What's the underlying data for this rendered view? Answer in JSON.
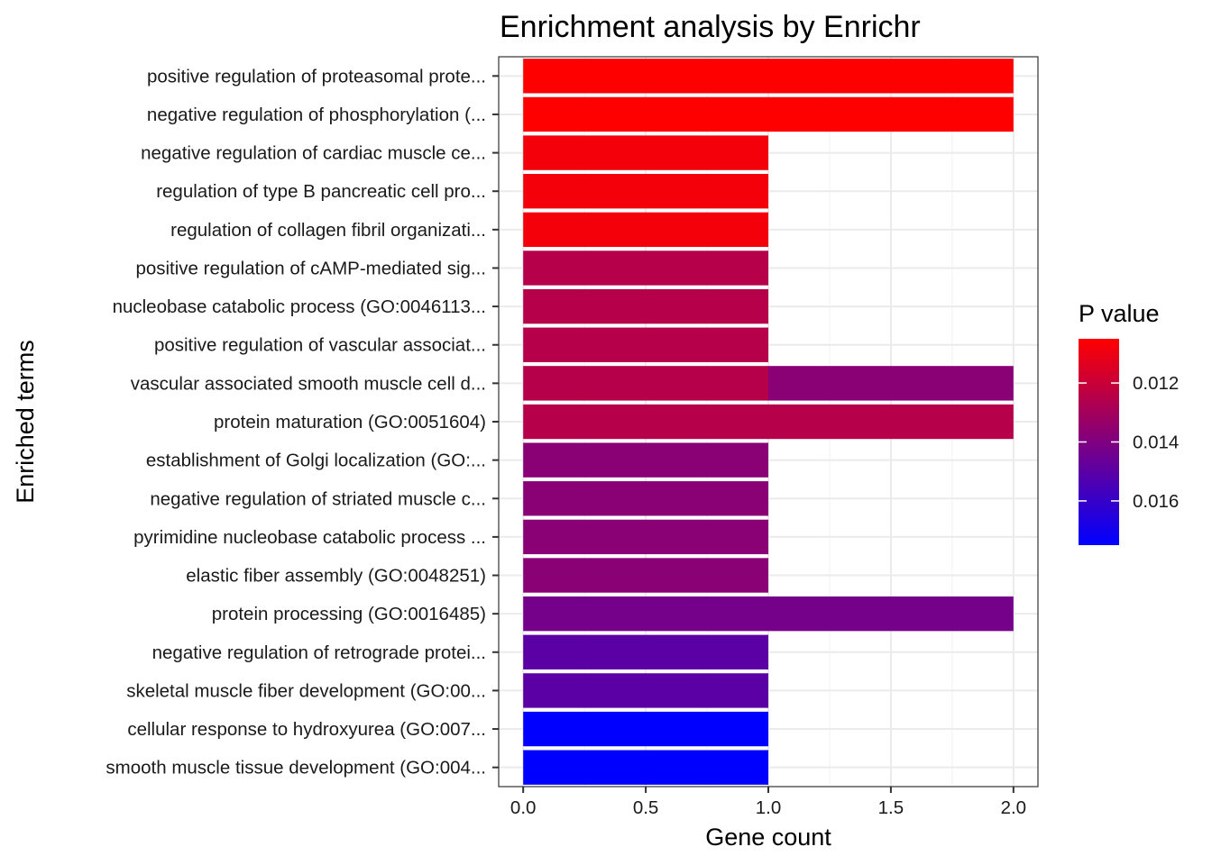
{
  "chart_data": {
    "type": "bar",
    "orientation": "horizontal",
    "title": "Enrichment analysis by Enrichr",
    "xlabel": "Gene count",
    "ylabel": "Enriched terms",
    "xlim": [
      0,
      2
    ],
    "xticks": [
      0,
      0.5,
      1,
      1.5,
      2
    ],
    "xtick_labels": [
      "0.0",
      "0.5",
      "1.0",
      "1.5",
      "2.0"
    ],
    "legend": {
      "title": "P value",
      "placement": "right",
      "range": [
        0.0105,
        0.0175
      ],
      "ticks": [
        0.012,
        0.014,
        0.016
      ],
      "tick_labels": [
        "0.012",
        "0.014",
        "0.016"
      ],
      "low_color": "#ff0000",
      "high_color": "#0000ff"
    },
    "bars": [
      {
        "term": "positive regulation of proteasomal prote...",
        "count": 2,
        "p_value": 0.0105
      },
      {
        "term": "negative regulation of phosphorylation (...",
        "count": 2,
        "p_value": 0.0105
      },
      {
        "term": "negative regulation of cardiac muscle ce...",
        "count": 1,
        "p_value": 0.0108
      },
      {
        "term": "regulation of type B pancreatic cell pro...",
        "count": 1,
        "p_value": 0.0108
      },
      {
        "term": "regulation of collagen fibril organizati...",
        "count": 1,
        "p_value": 0.0108
      },
      {
        "term": "positive regulation of cAMP-mediated sig...",
        "count": 1,
        "p_value": 0.0125
      },
      {
        "term": "nucleobase catabolic process (GO:0046113...",
        "count": 1,
        "p_value": 0.0125
      },
      {
        "term": "positive regulation of vascular associat...",
        "count": 1,
        "p_value": 0.0125
      },
      {
        "term": "vascular associated smooth muscle cell d...",
        "count": 2,
        "segments": [
          {
            "count": 1,
            "p_value": 0.0125
          },
          {
            "count": 1,
            "p_value": 0.0137
          }
        ]
      },
      {
        "term": "protein maturation (GO:0051604)",
        "count": 2,
        "p_value": 0.0125
      },
      {
        "term": "establishment of Golgi localization (GO:...",
        "count": 1,
        "p_value": 0.0137
      },
      {
        "term": "negative regulation of striated muscle c...",
        "count": 1,
        "p_value": 0.0137
      },
      {
        "term": "pyrimidine nucleobase catabolic process ...",
        "count": 1,
        "p_value": 0.0137
      },
      {
        "term": "elastic fiber assembly (GO:0048251)",
        "count": 1,
        "p_value": 0.0137
      },
      {
        "term": "protein processing (GO:0016485)",
        "count": 2,
        "p_value": 0.0143
      },
      {
        "term": "negative regulation of retrograde protei...",
        "count": 1,
        "p_value": 0.015
      },
      {
        "term": "skeletal muscle fiber development (GO:00...",
        "count": 1,
        "p_value": 0.015
      },
      {
        "term": "cellular response to hydroxyurea (GO:007...",
        "count": 1,
        "p_value": 0.0175
      },
      {
        "term": "smooth muscle tissue development (GO:004...",
        "count": 1,
        "p_value": 0.0175
      }
    ]
  }
}
